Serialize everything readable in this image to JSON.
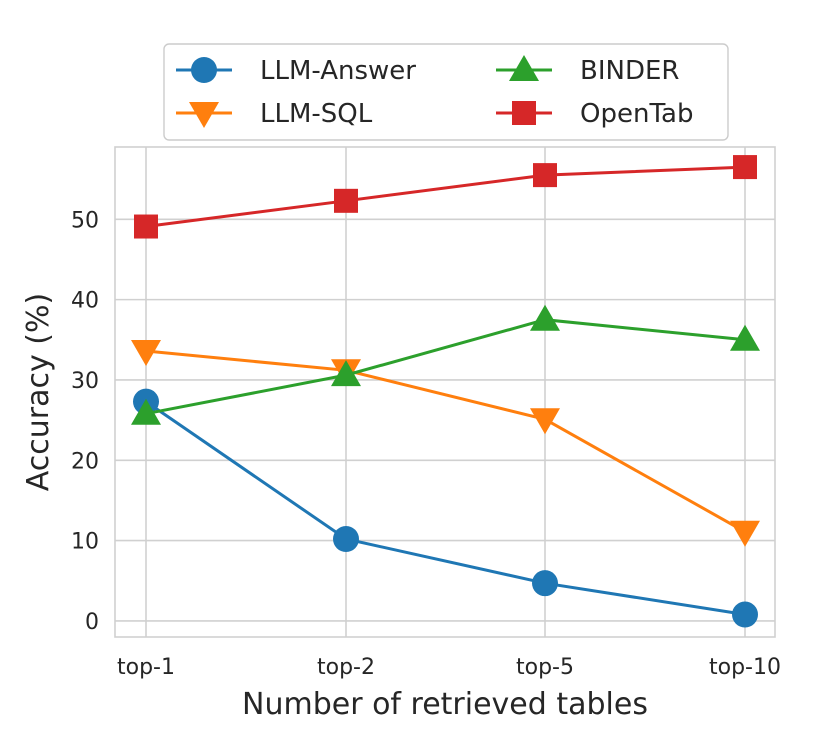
{
  "chart_data": {
    "type": "line",
    "title": "",
    "xlabel": "Number of retrieved tables",
    "ylabel": "Accuracy (%)",
    "categories": [
      "top-1",
      "top-2",
      "top-5",
      "top-10"
    ],
    "ylim": [
      -2,
      59
    ],
    "yticks": [
      0,
      10,
      20,
      30,
      40,
      50
    ],
    "grid": true,
    "legend_position": "top",
    "series": [
      {
        "name": "LLM-Answer",
        "marker": "circle",
        "color": "#1f77b4",
        "values": [
          27.3,
          10.2,
          4.7,
          0.8
        ]
      },
      {
        "name": "LLM-SQL",
        "marker": "triangle-down",
        "color": "#ff7f0e",
        "values": [
          33.6,
          31.2,
          25.1,
          11.1
        ]
      },
      {
        "name": "BINDER",
        "marker": "triangle-up",
        "color": "#2ca02c",
        "values": [
          25.8,
          30.6,
          37.5,
          35.0
        ]
      },
      {
        "name": "OpenTab",
        "marker": "square",
        "color": "#d62728",
        "values": [
          49.1,
          52.3,
          55.5,
          56.5
        ]
      }
    ]
  }
}
